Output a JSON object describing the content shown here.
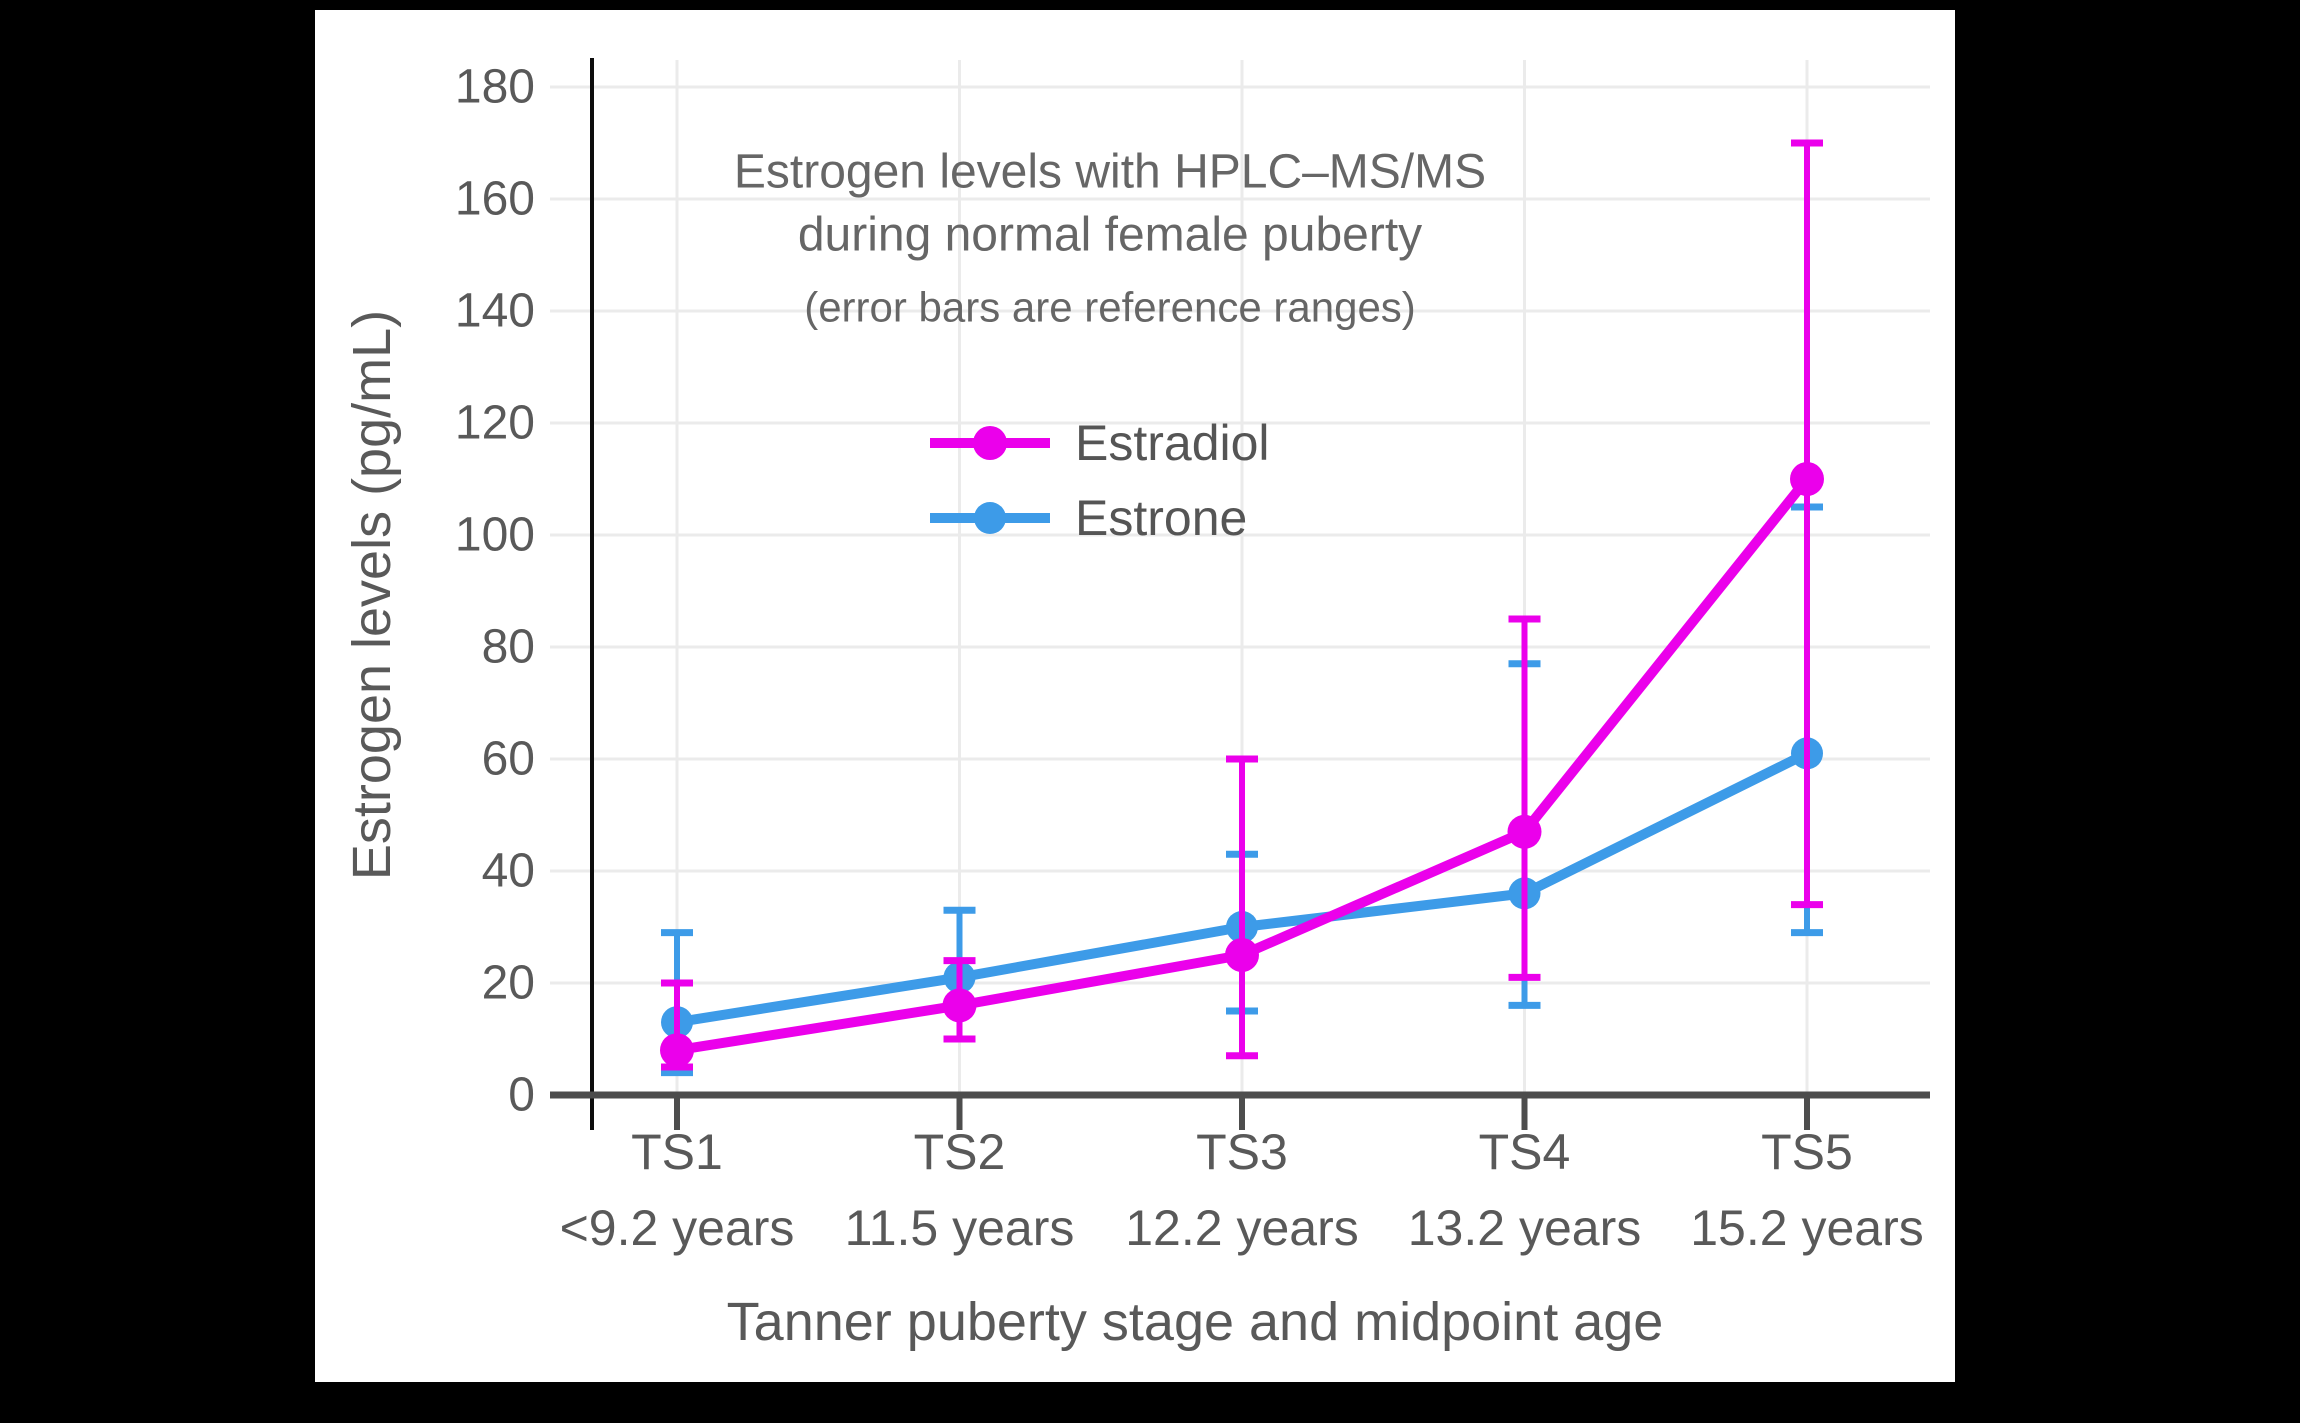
{
  "figure": {
    "background_color": "#000000",
    "panel_color": "#ffffff"
  },
  "chart_data": {
    "type": "line",
    "title_lines": [
      "Estrogen levels with HPLC–MS/MS",
      "during normal female puberty"
    ],
    "subtitle": "(error bars are reference ranges)",
    "xlabel": "Tanner puberty stage and midpoint age",
    "ylabel": "Estrogen levels (pg/mL)",
    "ylim": [
      0,
      180
    ],
    "yticks": [
      0,
      20,
      40,
      60,
      80,
      100,
      120,
      140,
      160,
      180
    ],
    "grid": true,
    "legend_position": "upper-left-of-center, inside plot",
    "error_bar_meaning": "reference ranges",
    "categories": [
      {
        "stage": "TS1",
        "age": "<9.2 years"
      },
      {
        "stage": "TS2",
        "age": "11.5 years"
      },
      {
        "stage": "TS3",
        "age": "12.2 years"
      },
      {
        "stage": "TS4",
        "age": "13.2 years"
      },
      {
        "stage": "TS5",
        "age": "15.2 years"
      }
    ],
    "series": [
      {
        "name": "Estradiol",
        "color": "#EB00EB",
        "values": [
          8,
          16,
          25,
          47,
          110
        ],
        "lower": [
          5,
          10,
          7,
          21,
          34
        ],
        "upper": [
          20,
          24,
          60,
          85,
          170
        ]
      },
      {
        "name": "Estrone",
        "color": "#3D9BE8",
        "values": [
          13,
          21,
          30,
          36,
          61
        ],
        "lower": [
          4,
          10,
          15,
          16,
          29
        ],
        "upper": [
          29,
          33,
          43,
          77,
          105
        ]
      }
    ]
  }
}
